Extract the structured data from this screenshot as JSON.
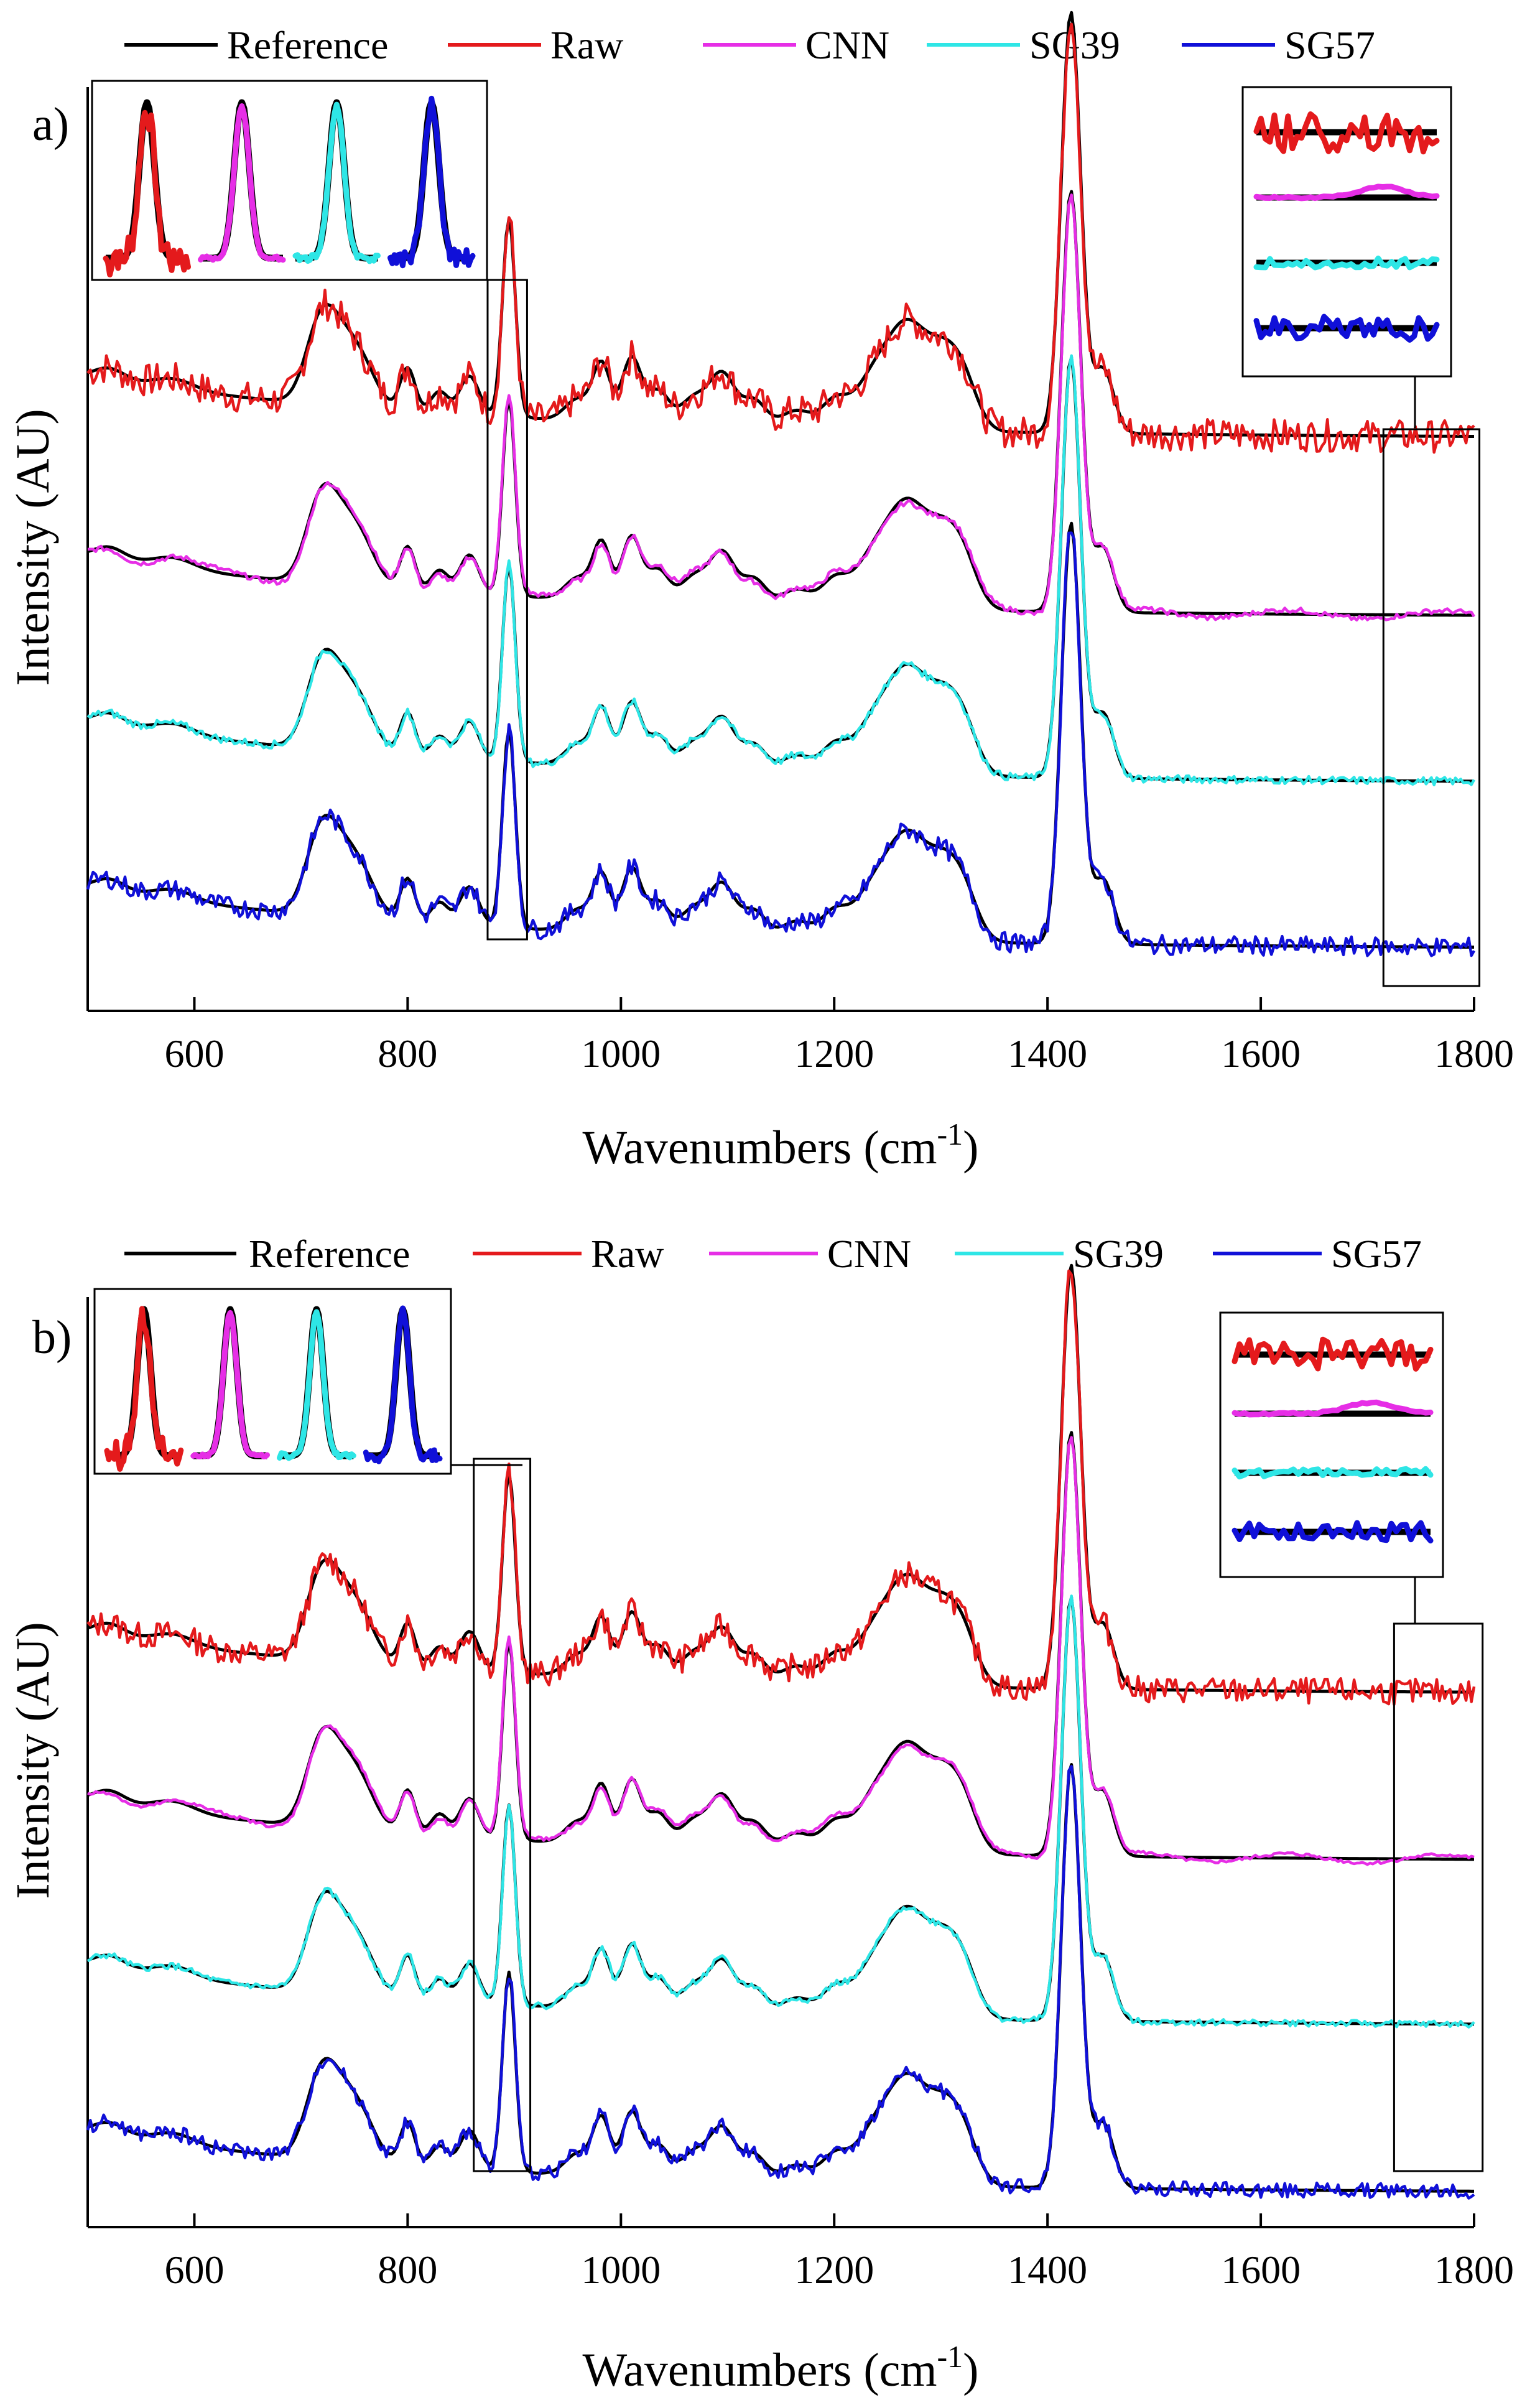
{
  "colors": {
    "Reference": "#000000",
    "Raw": "#e41a1c",
    "CNN": "#e62ee6",
    "SG39": "#2ee6e6",
    "SG57": "#1010d8"
  },
  "chart_data": [
    {
      "type": "line",
      "panel_label": "a)",
      "xlabel_main": "Wavenumbers (cm",
      "xlabel_sup": "-1",
      "xlabel_close": ")",
      "ylabel": "Intensity (AU)",
      "xlim": [
        500,
        1800
      ],
      "ylim": [
        0,
        4.2
      ],
      "x_ticks": [
        "600",
        "800",
        "1000",
        "1200",
        "1400",
        "1600",
        "1800"
      ],
      "x_tick_values": [
        600,
        800,
        1000,
        1200,
        1400,
        1600,
        1800
      ],
      "legend": [
        "Reference",
        "Raw",
        "CNN",
        "SG39",
        "SG57"
      ],
      "legend_position": "top",
      "series": [
        {
          "name": "Raw",
          "offset": 2.55,
          "noise": 0.075
        },
        {
          "name": "CNN",
          "offset": 1.72,
          "noise": 0.012
        },
        {
          "name": "SG39",
          "offset": 0.95,
          "noise": 0.018
        },
        {
          "name": "SG57",
          "offset": 0.18,
          "noise": 0.045
        }
      ],
      "peak_zoom_range": [
        875,
        912
      ],
      "tail_zoom_range": [
        1715,
        1805
      ],
      "seed": 7
    },
    {
      "type": "line",
      "panel_label": "b)",
      "xlabel_main": "Wavenumbers (cm",
      "xlabel_sup": "-1",
      "xlabel_close": ")",
      "ylabel": "Intensity (AU)",
      "xlim": [
        500,
        1800
      ],
      "ylim": [
        0,
        4.2
      ],
      "x_ticks": [
        "600",
        "800",
        "1000",
        "1200",
        "1400",
        "1600",
        "1800"
      ],
      "x_tick_values": [
        600,
        800,
        1000,
        1200,
        1400,
        1600,
        1800
      ],
      "legend": [
        "Reference",
        "Raw",
        "CNN",
        "SG39",
        "SG57"
      ],
      "legend_position": "top",
      "series": [
        {
          "name": "Raw",
          "offset": 2.35,
          "noise": 0.06
        },
        {
          "name": "CNN",
          "offset": 1.58,
          "noise": 0.008
        },
        {
          "name": "SG39",
          "offset": 0.82,
          "noise": 0.015
        },
        {
          "name": "SG57",
          "offset": 0.05,
          "noise": 0.035
        }
      ],
      "peak_zoom_range": [
        862,
        915
      ],
      "tail_zoom_range": [
        1725,
        1808
      ],
      "seed": 13
    }
  ]
}
